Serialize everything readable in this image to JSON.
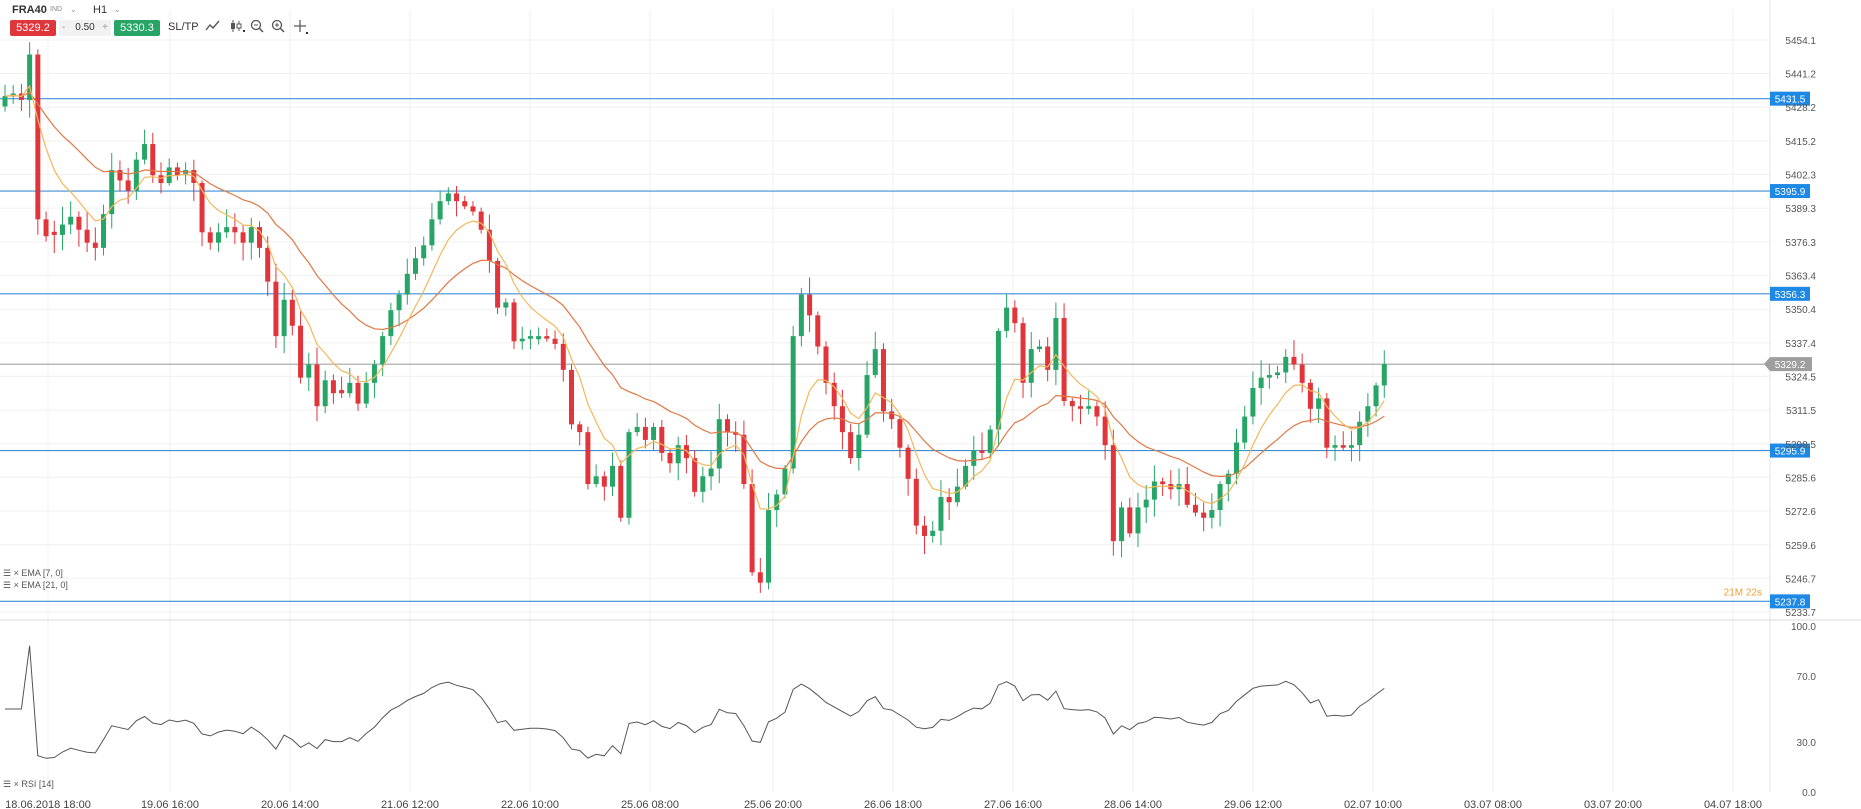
{
  "toolbar": {
    "symbol": "FRA40",
    "symbol_tag": "IND",
    "timeframe": "H1",
    "sell_price": "5329.2",
    "lot": "0.50",
    "lot_minus": "-",
    "lot_plus": "+",
    "buy_price": "5330.3",
    "sltp_label": "SL/TP",
    "icons": [
      "line-chart-icon",
      "candle-type-icon",
      "zoom-out-icon",
      "zoom-in-icon",
      "crosshair-icon"
    ]
  },
  "indicators": {
    "ema_fast_label": "EMA [7, 0]",
    "ema_slow_label": "EMA [21, 0]",
    "rsi_label": "RSI [14]"
  },
  "colors": {
    "up": "#27a567",
    "down": "#e0353b",
    "ema_fast": "#f3b85b",
    "ema_slow": "#e07845",
    "hline": "#3d8fd6",
    "price_tag": "#1e88e5",
    "rsi": "#555555"
  },
  "chart_data": [
    {
      "type": "candlestick",
      "symbol": "FRA40",
      "timeframe": "H1",
      "ylim": [
        5233.7,
        5454.1
      ],
      "y_ticks": [
        "5454.1",
        "5441.2",
        "5428.2",
        "5415.2",
        "5402.3",
        "5389.3",
        "5376.3",
        "5363.4",
        "5350.4",
        "5337.4",
        "5324.5",
        "5311.5",
        "5298.5",
        "5285.6",
        "5272.6",
        "5259.6",
        "5246.7",
        "5233.7"
      ],
      "x_ticks": [
        "18.06.2018 18:00",
        "19.06 16:00",
        "20.06 14:00",
        "21.06 12:00",
        "22.06 10:00",
        "25.06 08:00",
        "25.06 20:00",
        "26.06 18:00",
        "27.06 16:00",
        "28.06 14:00",
        "29.06 12:00",
        "02.07 10:00",
        "03.07 08:00",
        "03.07 20:00",
        "04.07 18:00"
      ],
      "horizontal_levels": [
        "5431.5",
        "5395.9",
        "5356.3",
        "5295.9",
        "5237.8"
      ],
      "current_price": "5329.2",
      "hidden_label": "21M 22s",
      "series": [
        {
          "name": "EMA [7, 0]"
        },
        {
          "name": "EMA [21, 0]"
        }
      ],
      "closes": [
        5432.5,
        5433.5,
        5431.0,
        5448.5,
        5385.0,
        5378.5,
        5379.0,
        5383.0,
        5386.0,
        5381.0,
        5376.0,
        5374.0,
        5387.0,
        5404.0,
        5400.0,
        5396.0,
        5408.0,
        5414.0,
        5402.0,
        5399.0,
        5405.0,
        5402.0,
        5404.0,
        5399.0,
        5380.0,
        5376.0,
        5380.0,
        5382.0,
        5380.0,
        5376.0,
        5382.0,
        5374.0,
        5361.0,
        5340.0,
        5354.0,
        5344.0,
        5324.0,
        5329.0,
        5313.0,
        5323.0,
        5318.0,
        5318.0,
        5322.0,
        5314.0,
        5322.0,
        5329.0,
        5340.0,
        5350.0,
        5356.0,
        5364.0,
        5370.0,
        5375.0,
        5385.0,
        5392.0,
        5395.0,
        5392.0,
        5390.0,
        5388.0,
        5381.0,
        5369.0,
        5351.0,
        5353.0,
        5338.0,
        5339.0,
        5340.0,
        5340.0,
        5339.0,
        5337.0,
        5327.0,
        5306.0,
        5303.0,
        5283.0,
        5286.0,
        5282.0,
        5290.0,
        5270.0,
        5303.0,
        5305.0,
        5300.0,
        5305.0,
        5295.0,
        5291.0,
        5298.0,
        5293.0,
        5280.0,
        5286.0,
        5289.0,
        5308.0,
        5303.0,
        5302.0,
        5283.0,
        5249.0,
        5245.0,
        5273.0,
        5279.0,
        5289.0,
        5340.0,
        5356.0,
        5348.0,
        5336.0,
        5322.0,
        5313.0,
        5303.0,
        5293.0,
        5302.0,
        5325.0,
        5335.0,
        5311.0,
        5308.0,
        5297.0,
        5285.0,
        5267.0,
        5263.0,
        5265.0,
        5278.0,
        5276.0,
        5282.0,
        5290.0,
        5296.0,
        5295.0,
        5304.0,
        5342.0,
        5351.0,
        5345.0,
        5322.0,
        5335.0,
        5336.0,
        5327.0,
        5347.0,
        5315.0,
        5313.0,
        5312.0,
        5313.0,
        5309.0,
        5298.0,
        5261.0,
        5274.0,
        5264.0,
        5274.0,
        5277.0,
        5284.0,
        5283.0,
        5281.0,
        5283.0,
        5275.0,
        5272.0,
        5270.0,
        5273.0,
        5283.0,
        5287.0,
        5299.0,
        5309.0,
        5320.0,
        5324.0,
        5325.0,
        5326.0,
        5332.0,
        5329.0,
        5322.0,
        5312.0,
        5316.0,
        5297.0,
        5298.0,
        5297.0,
        5298.0,
        5307.0,
        5313.0,
        5321.0,
        5329.2
      ],
      "rsi": {
        "ylim": [
          0.0,
          100.0
        ],
        "y_ticks": [
          "100.0",
          "70.0",
          "30.0",
          "0.0"
        ]
      }
    }
  ]
}
